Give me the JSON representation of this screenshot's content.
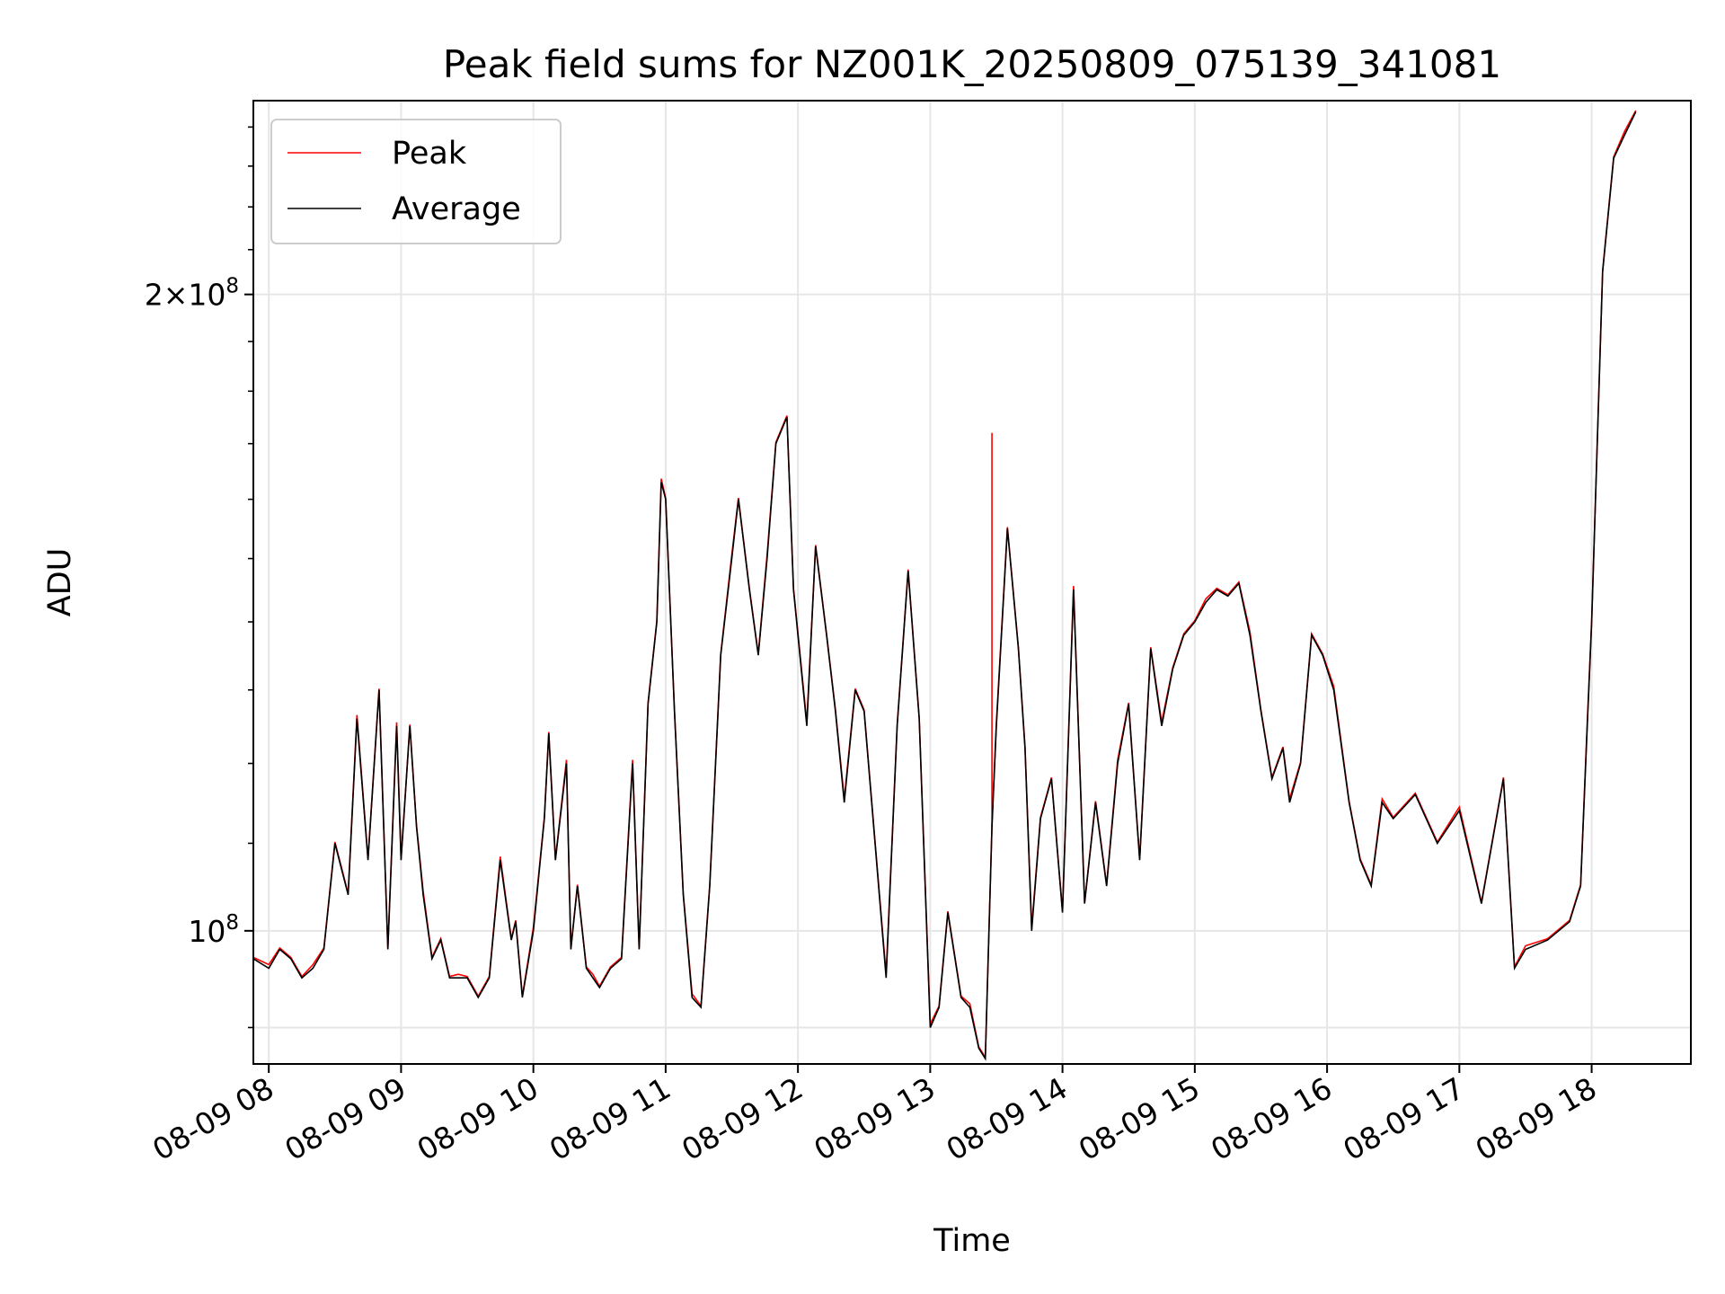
{
  "chart_data": {
    "type": "line",
    "title": "Peak field sums for NZ001K_20250809_075139_341081",
    "xlabel": "Time",
    "ylabel": "ADU",
    "y_scale": "log",
    "x_tick_labels": [
      "08-09 08",
      "08-09 09",
      "08-09 10",
      "08-09 11",
      "08-09 12",
      "08-09 13",
      "08-09 14",
      "08-09 15",
      "08-09 16",
      "08-09 17",
      "08-09 18"
    ],
    "y_tick_labels": [
      {
        "value": 100000000,
        "label": "10^8"
      },
      {
        "value": 200000000,
        "label": "2×10^8"
      }
    ],
    "xlim": [
      "2025-08-09 07:53",
      "2025-08-09 18:45"
    ],
    "ylim": [
      86500000,
      247000000
    ],
    "grid": true,
    "legend": {
      "position": "upper left",
      "entries": [
        {
          "name": "Peak",
          "color": "#ff0000"
        },
        {
          "name": "Average",
          "color": "#000000"
        }
      ]
    },
    "series": [
      {
        "name": "Peak",
        "color": "#ff0000",
        "spike": {
          "x": "2025-08-09 13:28",
          "top": 172000000
        }
      },
      {
        "name": "Average",
        "color": "#000000"
      }
    ],
    "x": [
      "07:53",
      "08:00",
      "08:05",
      "08:10",
      "08:15",
      "08:20",
      "08:25",
      "08:30",
      "08:36",
      "08:40",
      "08:45",
      "08:50",
      "08:54",
      "08:58",
      "09:00",
      "09:04",
      "09:07",
      "09:10",
      "09:14",
      "09:18",
      "09:22",
      "09:26",
      "09:30",
      "09:35",
      "09:40",
      "09:45",
      "09:50",
      "09:52",
      "09:55",
      "10:00",
      "10:05",
      "10:07",
      "10:10",
      "10:15",
      "10:17",
      "10:20",
      "10:24",
      "10:27",
      "10:30",
      "10:35",
      "10:40",
      "10:45",
      "10:48",
      "10:52",
      "10:56",
      "10:58",
      "11:00",
      "11:04",
      "11:08",
      "11:12",
      "11:16",
      "11:20",
      "11:25",
      "11:30",
      "11:33",
      "11:38",
      "11:42",
      "11:46",
      "11:50",
      "11:55",
      "11:58",
      "12:04",
      "12:08",
      "12:13",
      "12:17",
      "12:21",
      "12:26",
      "12:30",
      "12:35",
      "12:40",
      "12:45",
      "12:50",
      "12:55",
      "13:00",
      "13:04",
      "13:08",
      "13:14",
      "13:18",
      "13:22",
      "13:25",
      "13:28",
      "13:30",
      "13:35",
      "13:40",
      "13:43",
      "13:46",
      "13:50",
      "13:55",
      "14:00",
      "14:05",
      "14:10",
      "14:15",
      "14:20",
      "14:25",
      "14:30",
      "14:35",
      "14:40",
      "14:45",
      "14:50",
      "14:55",
      "15:00",
      "15:05",
      "15:10",
      "15:15",
      "15:20",
      "15:25",
      "15:30",
      "15:35",
      "15:40",
      "15:43",
      "15:48",
      "15:53",
      "15:58",
      "16:03",
      "16:10",
      "16:15",
      "16:20",
      "16:25",
      "16:30",
      "16:40",
      "16:50",
      "17:00",
      "17:10",
      "17:20",
      "17:25",
      "17:30",
      "17:40",
      "17:50",
      "17:55",
      "17:58",
      "18:00",
      "18:05",
      "18:10",
      "18:15",
      "18:20",
      "18:25",
      "18:28",
      "18:30",
      "18:35",
      "18:40",
      "18:45"
    ],
    "average": [
      97,
      96,
      98,
      97,
      95,
      96,
      98,
      110,
      104,
      126,
      108,
      130,
      98,
      125,
      108,
      125,
      112,
      104,
      97,
      99,
      95,
      95,
      95,
      93,
      95,
      108,
      99,
      101,
      93,
      100,
      113,
      124,
      108,
      120,
      98,
      105,
      96,
      95,
      94,
      96,
      97,
      120,
      98,
      128,
      140,
      163,
      160,
      127,
      104,
      93,
      92,
      105,
      135,
      150,
      160,
      145,
      135,
      150,
      170,
      175,
      145,
      125,
      152,
      138,
      127,
      115,
      130,
      127,
      110,
      95,
      125,
      148,
      126,
      90,
      92,
      102,
      93,
      92,
      88,
      87,
      112,
      125,
      155,
      136,
      122,
      100,
      113,
      118,
      102,
      145,
      103,
      115,
      105,
      120,
      128,
      108,
      136,
      125,
      133,
      138,
      140,
      143,
      145,
      144,
      146,
      138,
      127,
      118,
      122,
      115,
      120,
      138,
      135,
      130,
      115,
      108,
      105,
      115,
      113,
      116,
      110,
      114,
      103,
      118,
      96,
      98,
      99,
      101,
      105,
      125,
      140,
      205,
      232,
      238,
      244
    ]
  }
}
